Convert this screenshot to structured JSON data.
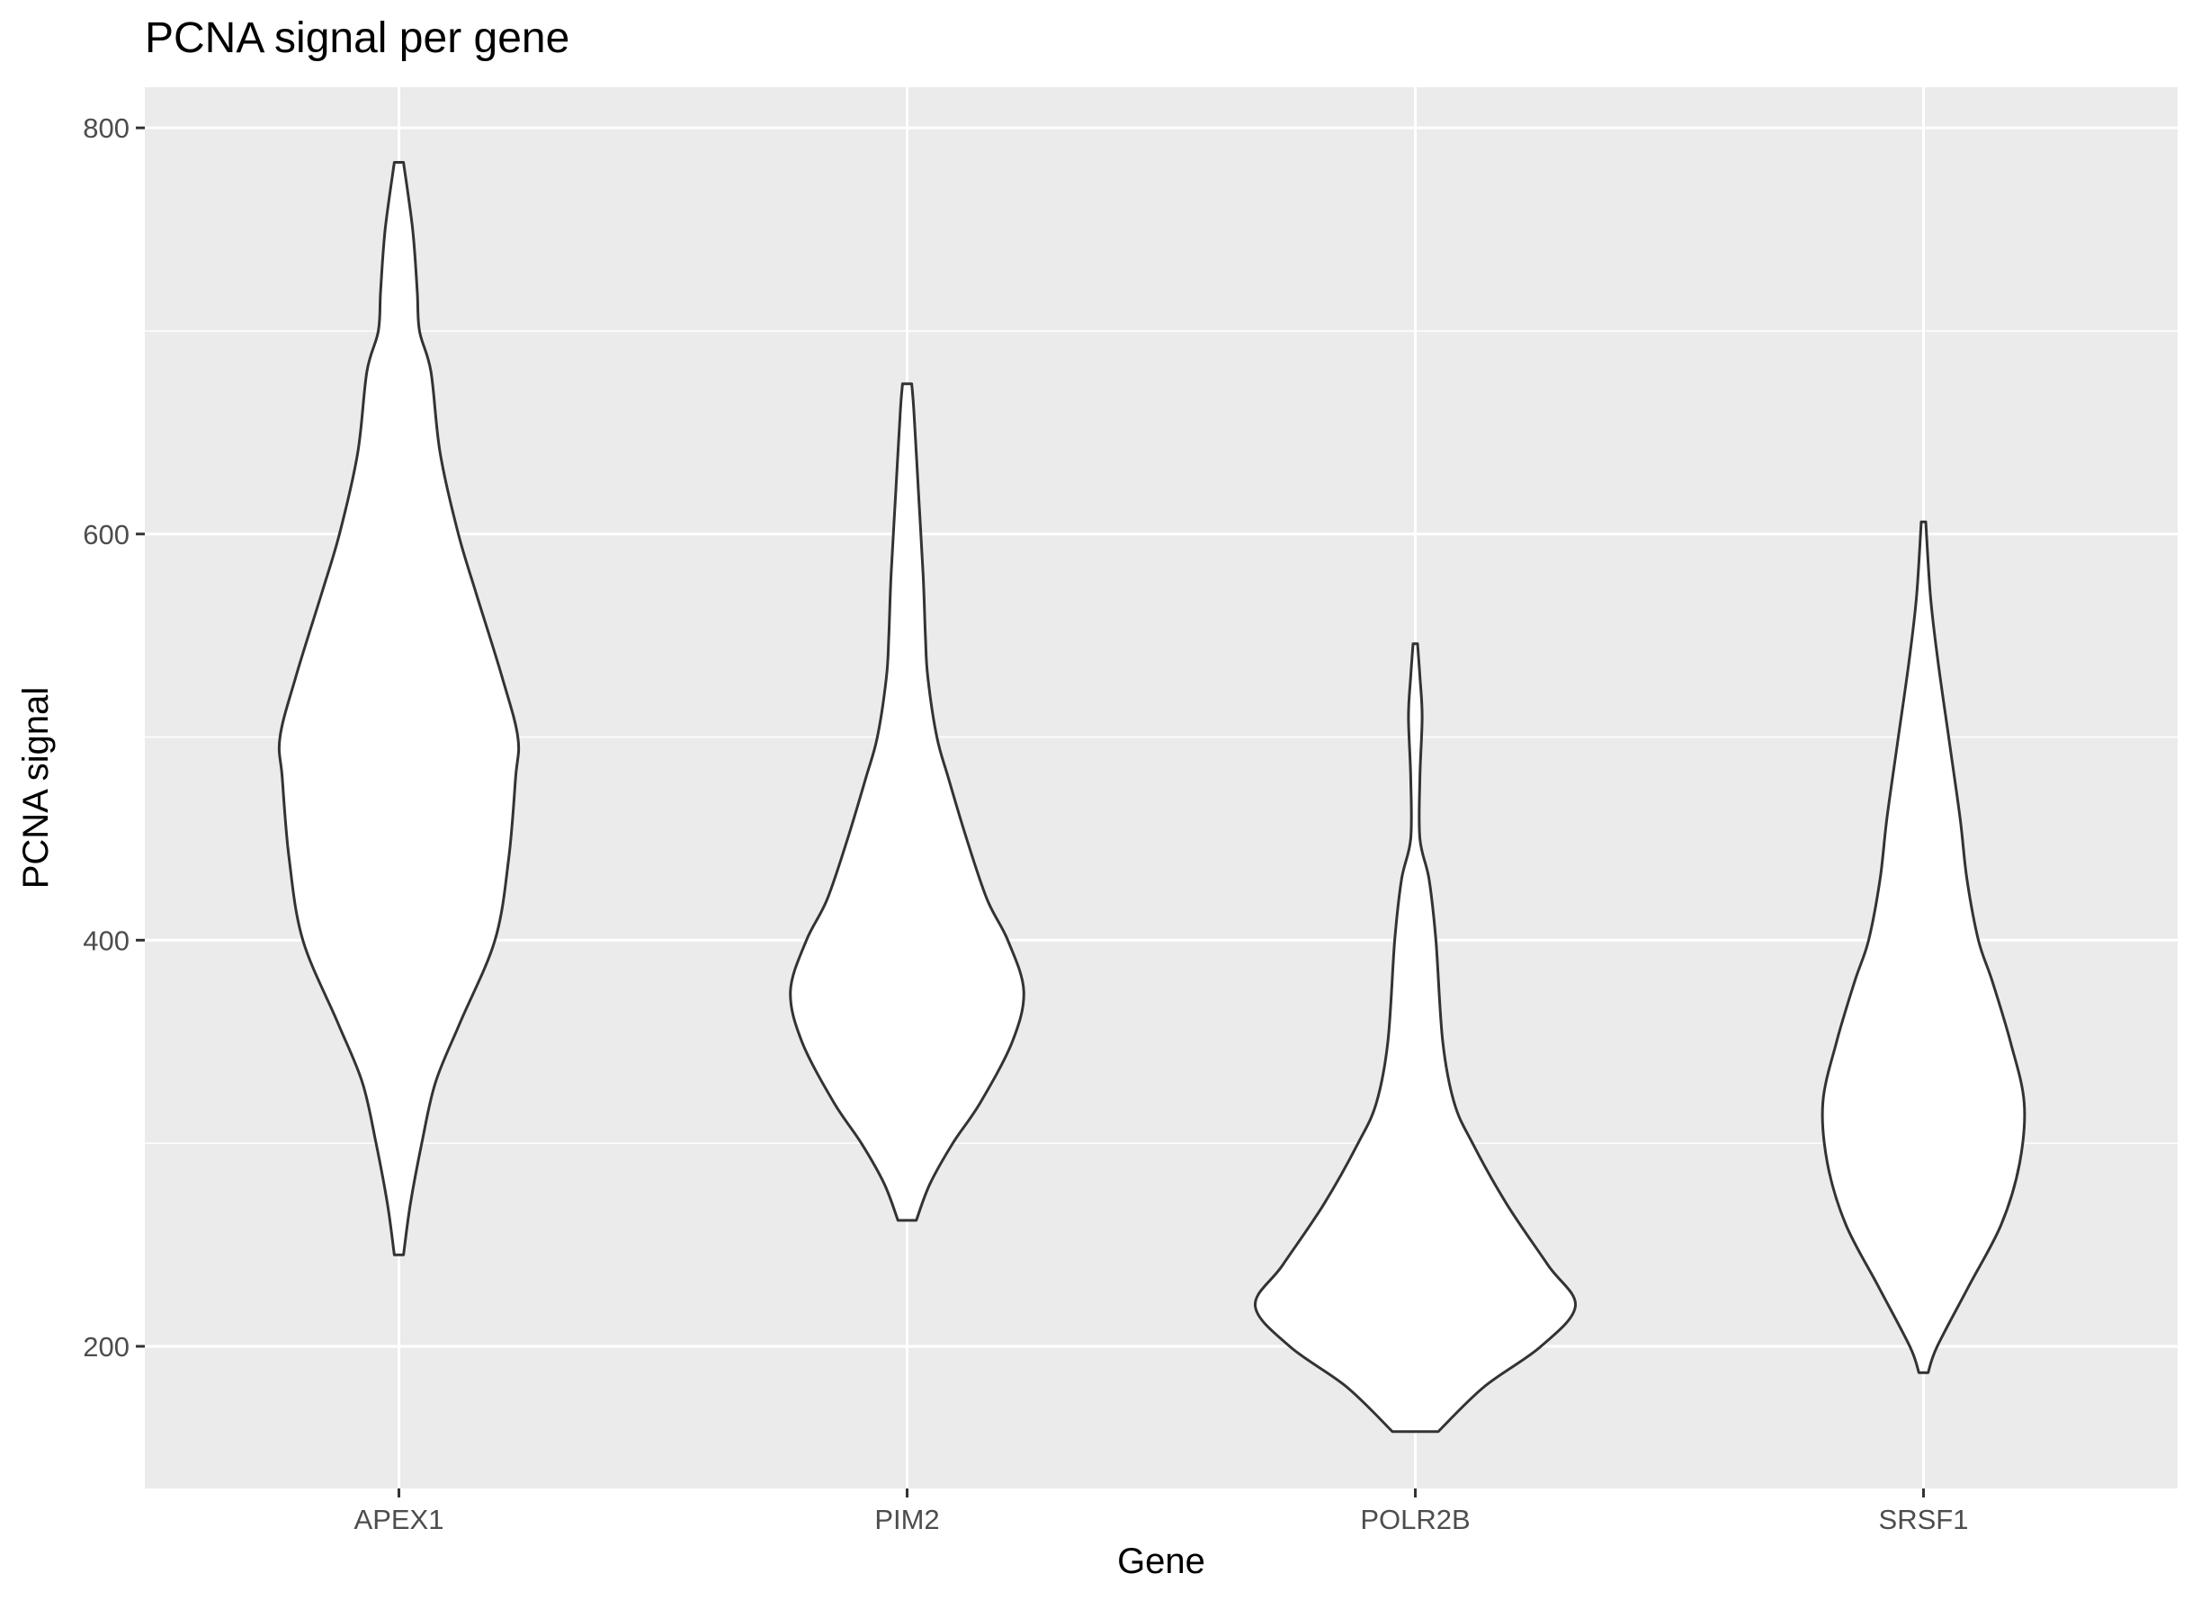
{
  "chart_data": {
    "type": "violin",
    "title": "PCNA signal per gene",
    "xlabel": "Gene",
    "ylabel": "PCNA signal",
    "categories": [
      "APEX1",
      "PIM2",
      "POLR2B",
      "SRSF1"
    ],
    "ylim": [
      130,
      820
    ],
    "yticks": [
      200,
      400,
      600,
      800
    ],
    "grid": true,
    "legend": "none",
    "colors": {
      "panel": "#ebebeb",
      "grid": "#ffffff",
      "fill": "#ffffff",
      "outline": "#333333"
    },
    "series": [
      {
        "category": "APEX1",
        "min": 245,
        "max": 783,
        "density": [
          [
            245,
            0.02
          ],
          [
            270,
            0.05
          ],
          [
            300,
            0.1
          ],
          [
            330,
            0.16
          ],
          [
            360,
            0.27
          ],
          [
            400,
            0.42
          ],
          [
            440,
            0.48
          ],
          [
            480,
            0.51
          ],
          [
            500,
            0.52
          ],
          [
            530,
            0.45
          ],
          [
            570,
            0.34
          ],
          [
            600,
            0.26
          ],
          [
            640,
            0.18
          ],
          [
            680,
            0.14
          ],
          [
            700,
            0.09
          ],
          [
            720,
            0.08
          ],
          [
            750,
            0.06
          ],
          [
            783,
            0.02
          ]
        ]
      },
      {
        "category": "PIM2",
        "min": 262,
        "max": 674,
        "density": [
          [
            262,
            0.04
          ],
          [
            280,
            0.1
          ],
          [
            300,
            0.2
          ],
          [
            320,
            0.32
          ],
          [
            350,
            0.46
          ],
          [
            375,
            0.51
          ],
          [
            400,
            0.44
          ],
          [
            420,
            0.35
          ],
          [
            450,
            0.26
          ],
          [
            480,
            0.18
          ],
          [
            500,
            0.13
          ],
          [
            530,
            0.09
          ],
          [
            550,
            0.08
          ],
          [
            580,
            0.07
          ],
          [
            620,
            0.05
          ],
          [
            660,
            0.03
          ],
          [
            674,
            0.02
          ]
        ]
      },
      {
        "category": "POLR2B",
        "min": 158,
        "max": 546,
        "density": [
          [
            158,
            0.1
          ],
          [
            180,
            0.3
          ],
          [
            200,
            0.55
          ],
          [
            220,
            0.7
          ],
          [
            240,
            0.58
          ],
          [
            270,
            0.4
          ],
          [
            300,
            0.25
          ],
          [
            320,
            0.17
          ],
          [
            350,
            0.12
          ],
          [
            400,
            0.09
          ],
          [
            430,
            0.06
          ],
          [
            450,
            0.02
          ],
          [
            480,
            0.02
          ],
          [
            510,
            0.03
          ],
          [
            530,
            0.02
          ],
          [
            546,
            0.01
          ]
        ]
      },
      {
        "category": "SRSF1",
        "min": 187,
        "max": 606,
        "density": [
          [
            187,
            0.02
          ],
          [
            200,
            0.06
          ],
          [
            230,
            0.2
          ],
          [
            260,
            0.34
          ],
          [
            290,
            0.42
          ],
          [
            320,
            0.44
          ],
          [
            350,
            0.38
          ],
          [
            380,
            0.3
          ],
          [
            400,
            0.24
          ],
          [
            430,
            0.19
          ],
          [
            460,
            0.16
          ],
          [
            500,
            0.11
          ],
          [
            540,
            0.06
          ],
          [
            570,
            0.03
          ],
          [
            606,
            0.01
          ]
        ]
      }
    ]
  }
}
